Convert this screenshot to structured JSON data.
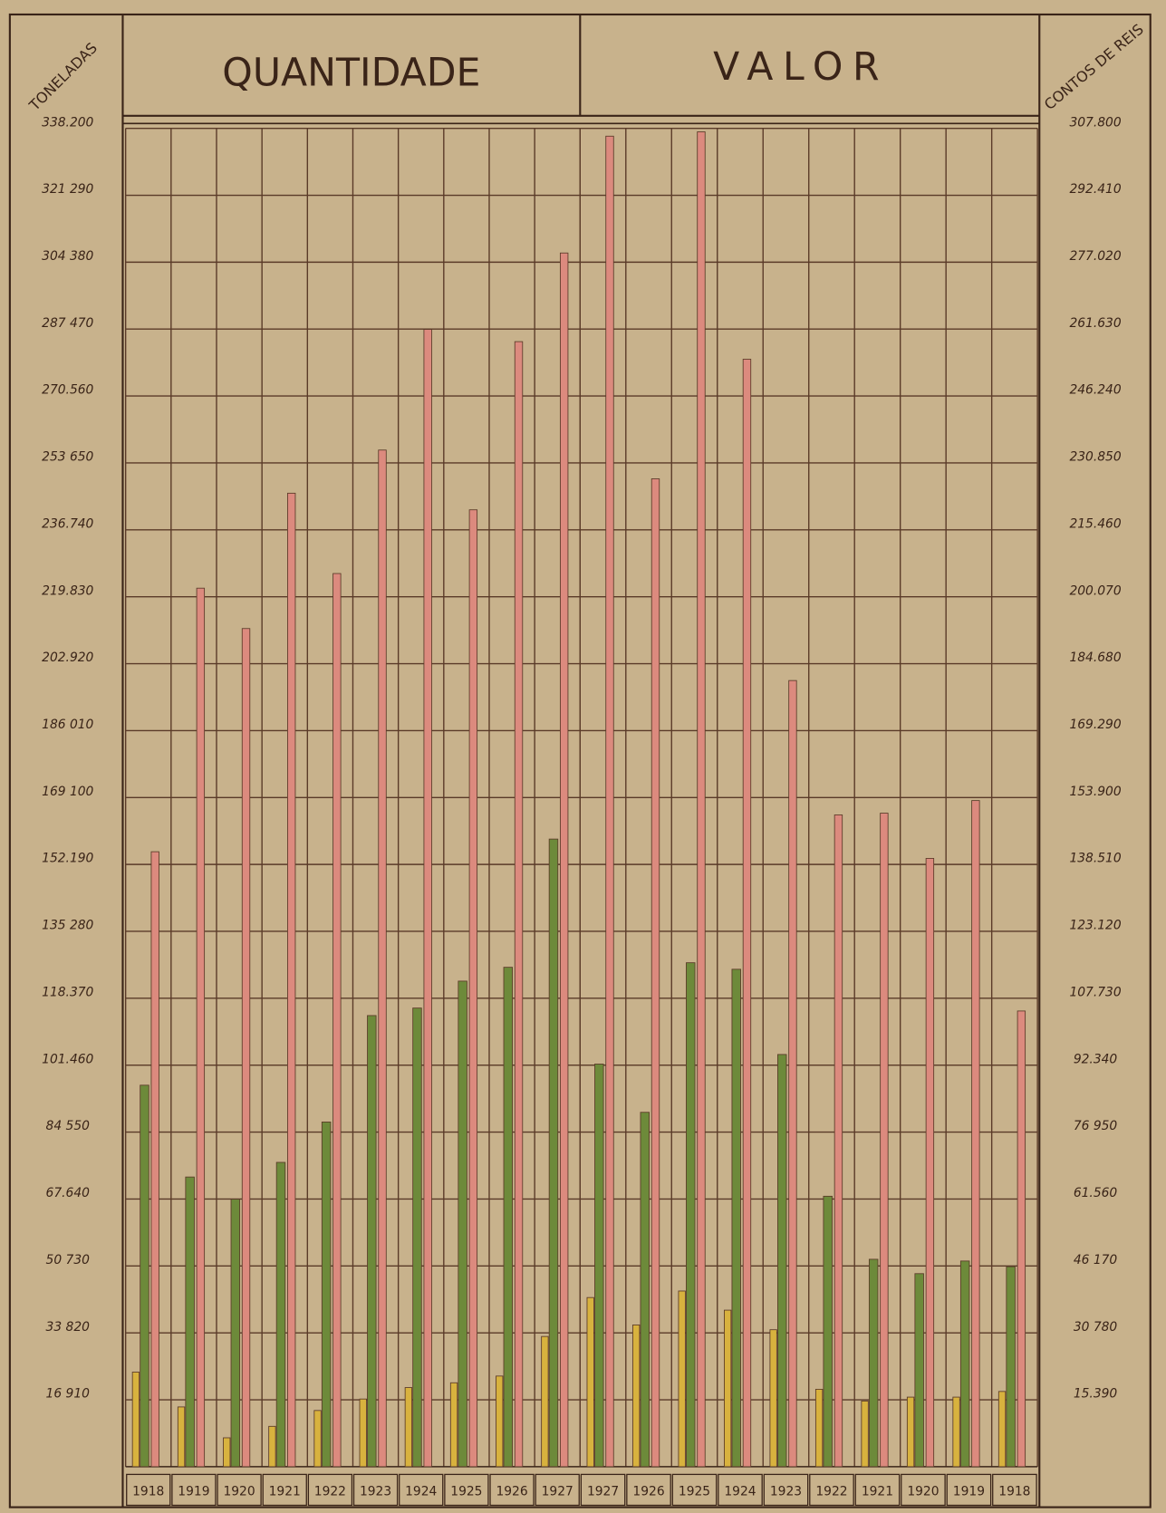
{
  "chart_data": [
    {
      "type": "bar",
      "title": "QUANTIDADE",
      "y_axis_label": "TONELADAS",
      "categories": [
        "1918",
        "1919",
        "1920",
        "1921",
        "1922",
        "1923",
        "1924",
        "1925",
        "1926",
        "1927"
      ],
      "series": [
        {
          "color": "#d8b23e",
          "values": [
            23900,
            15100,
            7300,
            10200,
            14200,
            17100,
            20000,
            21200,
            22900,
            32900
          ]
        },
        {
          "color": "#6d8a3a",
          "values": [
            96400,
            73200,
            67600,
            76900,
            87100,
            114000,
            115900,
            122700,
            126200,
            158600
          ]
        },
        {
          "color": "#dc8a7e",
          "values": [
            155400,
            222000,
            211800,
            246000,
            225700,
            256900,
            287400,
            241800,
            284300,
            306700
          ]
        }
      ],
      "ylim": [
        0,
        338200
      ],
      "yticks": [
        {
          "value": 16910,
          "label": "16 910"
        },
        {
          "value": 33820,
          "label": "33 820"
        },
        {
          "value": 50730,
          "label": "50 730"
        },
        {
          "value": 67640,
          "label": "67.640"
        },
        {
          "value": 84550,
          "label": "84 550"
        },
        {
          "value": 101460,
          "label": "101.460"
        },
        {
          "value": 118370,
          "label": "118.370"
        },
        {
          "value": 135280,
          "label": "135 280"
        },
        {
          "value": 152190,
          "label": "152.190"
        },
        {
          "value": 169100,
          "label": "169 100"
        },
        {
          "value": 186010,
          "label": "186 010"
        },
        {
          "value": 202920,
          "label": "202.920"
        },
        {
          "value": 219830,
          "label": "219.830"
        },
        {
          "value": 236740,
          "label": "236.740"
        },
        {
          "value": 253650,
          "label": "253 650"
        },
        {
          "value": 270560,
          "label": "270.560"
        },
        {
          "value": 287470,
          "label": "287 470"
        },
        {
          "value": 304380,
          "label": "304 380"
        },
        {
          "value": 321290,
          "label": "321 290"
        },
        {
          "value": 338200,
          "label": "338.200"
        }
      ],
      "grid": true
    },
    {
      "type": "bar",
      "title": "VALOR",
      "y_axis_label": "CONTOS DE REIS",
      "categories": [
        "1927",
        "1926",
        "1925",
        "1924",
        "1923",
        "1922",
        "1921",
        "1920",
        "1919",
        "1918"
      ],
      "series": [
        {
          "color": "#d8b23e",
          "values": [
            38900,
            32600,
            40400,
            36000,
            31500,
            17800,
            15100,
            16000,
            16000,
            17300
          ]
        },
        {
          "color": "#6d8a3a",
          "values": [
            92600,
            81500,
            115900,
            114400,
            94800,
            62200,
            47700,
            44400,
            47300,
            46000
          ]
        },
        {
          "color": "#dc8a7e",
          "values": [
            306000,
            227200,
            307000,
            254700,
            180800,
            149900,
            150300,
            139900,
            153200,
            104800
          ]
        }
      ],
      "ylim": [
        0,
        307800
      ],
      "yticks": [
        {
          "value": 15390,
          "label": "15.390"
        },
        {
          "value": 30780,
          "label": "30 780"
        },
        {
          "value": 46170,
          "label": "46 170"
        },
        {
          "value": 61560,
          "label": "61.560"
        },
        {
          "value": 76950,
          "label": "76 950"
        },
        {
          "value": 92340,
          "label": "92.340"
        },
        {
          "value": 107730,
          "label": "107.730"
        },
        {
          "value": 123120,
          "label": "123.120"
        },
        {
          "value": 138510,
          "label": "138.510"
        },
        {
          "value": 153900,
          "label": "153.900"
        },
        {
          "value": 169290,
          "label": "169.290"
        },
        {
          "value": 184680,
          "label": "184.680"
        },
        {
          "value": 200070,
          "label": "200.070"
        },
        {
          "value": 215460,
          "label": "215.460"
        },
        {
          "value": 230850,
          "label": "230.850"
        },
        {
          "value": 246240,
          "label": "246.240"
        },
        {
          "value": 261630,
          "label": "261.630"
        },
        {
          "value": 277020,
          "label": "277.020"
        },
        {
          "value": 292410,
          "label": "292.410"
        },
        {
          "value": 307800,
          "label": "307.800"
        }
      ],
      "grid": true
    }
  ]
}
